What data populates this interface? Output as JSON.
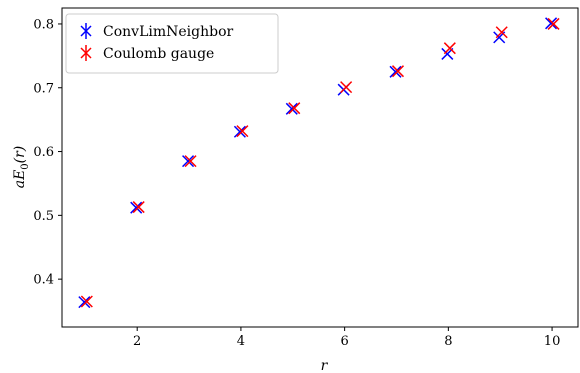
{
  "chart_data": {
    "type": "scatter",
    "xlabel": "r",
    "ylabel": "aE0(r)",
    "ylabel_main": "aE",
    "ylabel_sub": "0",
    "ylabel_tail": "(r)",
    "xlim": [
      0.55,
      10.5
    ],
    "ylim": [
      0.325,
      0.825
    ],
    "xticks": [
      2,
      4,
      6,
      8,
      10
    ],
    "yticks": [
      0.4,
      0.5,
      0.6,
      0.7,
      0.8
    ],
    "xtick_labels": [
      "2",
      "4",
      "6",
      "8",
      "10"
    ],
    "ytick_labels": [
      "0.4",
      "0.5",
      "0.6",
      "0.7",
      "0.8"
    ],
    "grid": false,
    "legend_position": "top-left",
    "series": [
      {
        "name": "ConvLimNeighbor",
        "color": "#0000ff",
        "marker": "x",
        "x": [
          1,
          2,
          3,
          4,
          5,
          6,
          7,
          8,
          9,
          10
        ],
        "y": [
          0.364,
          0.512,
          0.585,
          0.631,
          0.667,
          0.697,
          0.725,
          0.753,
          0.779,
          0.801
        ]
      },
      {
        "name": "Coulomb gauge",
        "color": "#ff0000",
        "marker": "x",
        "x": [
          1,
          2,
          3,
          4,
          5,
          6,
          7,
          8,
          9,
          10
        ],
        "y": [
          0.365,
          0.513,
          0.585,
          0.632,
          0.668,
          0.701,
          0.726,
          0.762,
          0.787,
          0.8
        ]
      }
    ]
  }
}
